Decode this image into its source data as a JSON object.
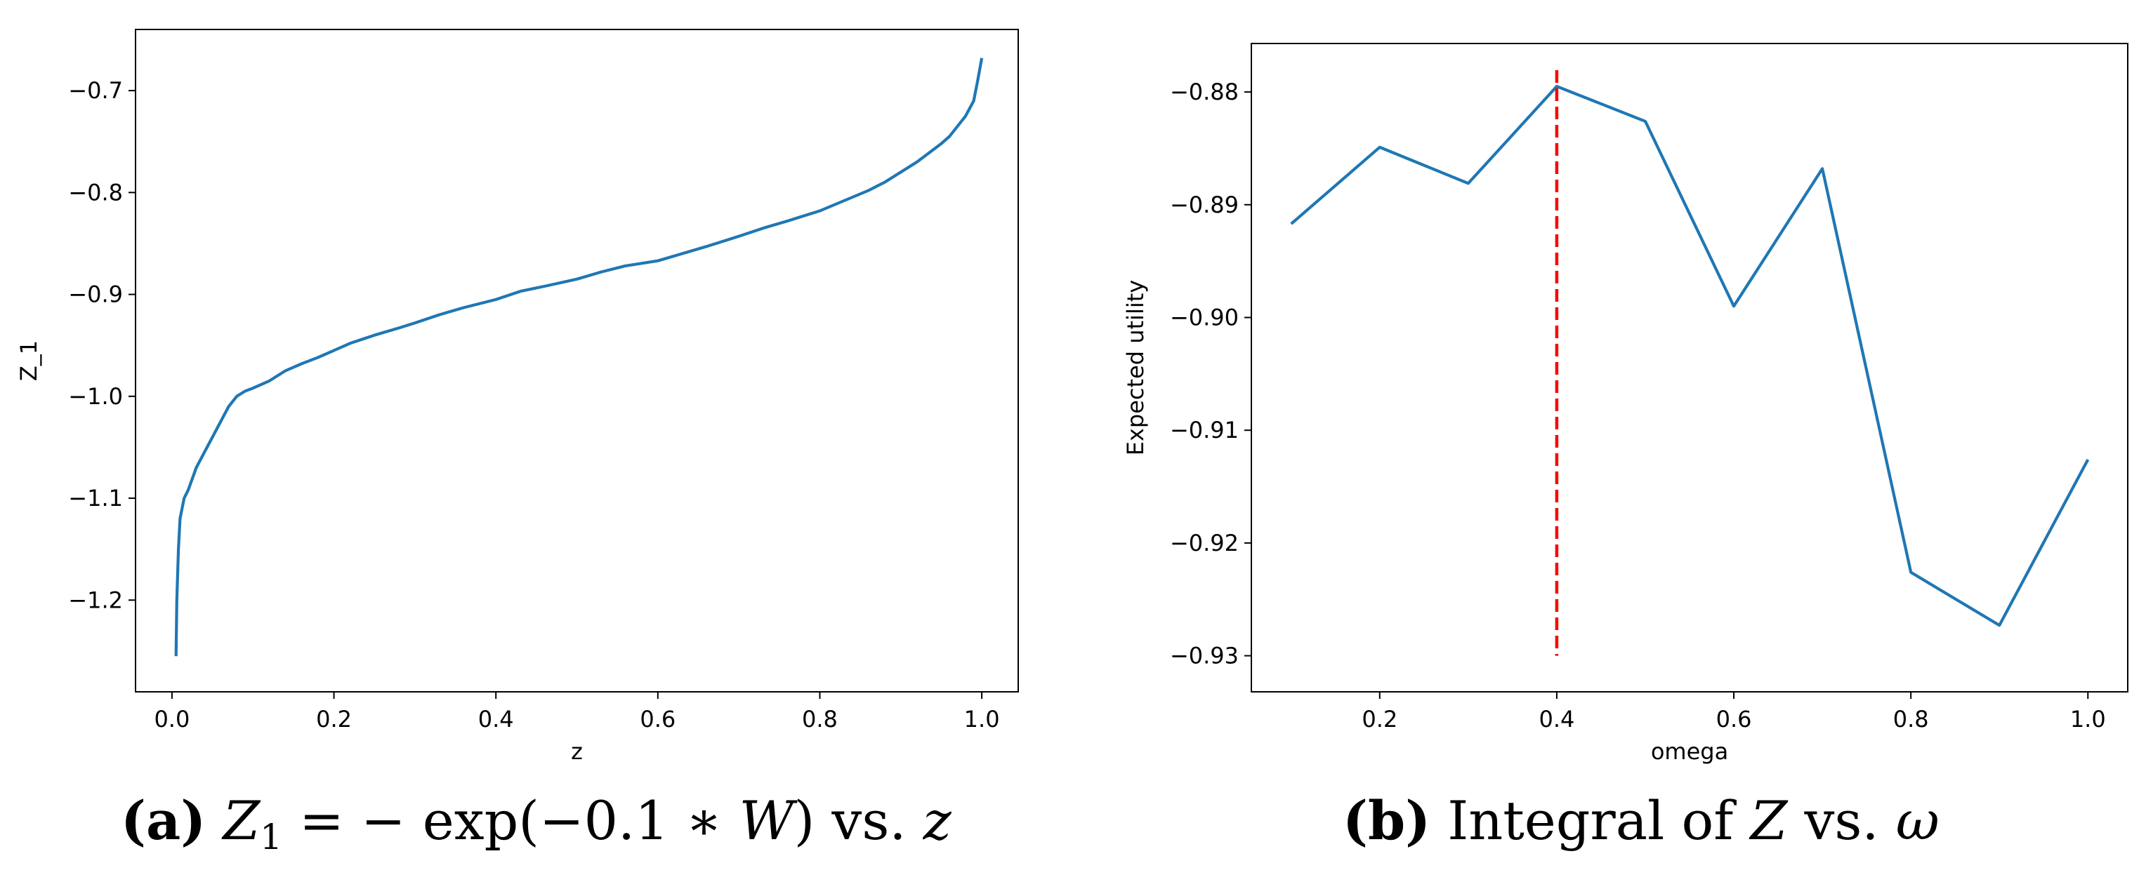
{
  "chart_data": [
    {
      "type": "line",
      "title": "",
      "xlabel": "z",
      "ylabel": "Z_1",
      "xlim": [
        -0.045,
        1.045
      ],
      "ylim": [
        -1.29,
        -0.64
      ],
      "xticks": [
        0.0,
        0.2,
        0.4,
        0.6,
        0.8,
        1.0
      ],
      "xtick_labels": [
        "0.0",
        "0.2",
        "0.4",
        "0.6",
        "0.8",
        "1.0"
      ],
      "yticks": [
        -1.2,
        -1.1,
        -1.0,
        -0.9,
        -0.8,
        -0.7
      ],
      "ytick_labels": [
        "−1.2",
        "−1.1",
        "−1.0",
        "−0.9",
        "−0.8",
        "−0.7"
      ],
      "color": "#1f77b4",
      "series": [
        {
          "name": "Z_1",
          "x": [
            0.005,
            0.006,
            0.008,
            0.01,
            0.015,
            0.02,
            0.03,
            0.04,
            0.05,
            0.06,
            0.07,
            0.08,
            0.09,
            0.1,
            0.12,
            0.14,
            0.16,
            0.18,
            0.2,
            0.22,
            0.25,
            0.28,
            0.3,
            0.33,
            0.36,
            0.4,
            0.43,
            0.46,
            0.5,
            0.53,
            0.56,
            0.6,
            0.63,
            0.66,
            0.7,
            0.73,
            0.76,
            0.8,
            0.83,
            0.86,
            0.88,
            0.9,
            0.92,
            0.94,
            0.95,
            0.96,
            0.97,
            0.98,
            0.99,
            0.995,
            1.0
          ],
          "y": [
            -1.255,
            -1.2,
            -1.15,
            -1.12,
            -1.1,
            -1.092,
            -1.07,
            -1.055,
            -1.04,
            -1.025,
            -1.01,
            -1.0,
            -0.995,
            -0.992,
            -0.985,
            -0.975,
            -0.968,
            -0.962,
            -0.955,
            -0.948,
            -0.94,
            -0.933,
            -0.928,
            -0.92,
            -0.913,
            -0.905,
            -0.897,
            -0.892,
            -0.885,
            -0.878,
            -0.872,
            -0.867,
            -0.86,
            -0.853,
            -0.843,
            -0.835,
            -0.828,
            -0.818,
            -0.808,
            -0.798,
            -0.79,
            -0.78,
            -0.77,
            -0.758,
            -0.752,
            -0.745,
            -0.735,
            -0.725,
            -0.71,
            -0.69,
            -0.668
          ]
        }
      ]
    },
    {
      "type": "line",
      "title": "",
      "xlabel": "omega",
      "ylabel": "Expected utility",
      "xlim": [
        0.055,
        1.045
      ],
      "ylim": [
        -0.9332,
        -0.8757
      ],
      "xticks": [
        0.2,
        0.4,
        0.6,
        0.8,
        1.0
      ],
      "xtick_labels": [
        "0.2",
        "0.4",
        "0.6",
        "0.8",
        "1.0"
      ],
      "yticks": [
        -0.93,
        -0.92,
        -0.91,
        -0.9,
        -0.89,
        -0.88
      ],
      "ytick_labels": [
        "−0.93",
        "−0.92",
        "−0.91",
        "−0.90",
        "−0.89",
        "−0.88"
      ],
      "color": "#1f77b4",
      "series": [
        {
          "name": "Expected utility",
          "x": [
            0.1,
            0.2,
            0.3,
            0.4,
            0.5,
            0.6,
            0.7,
            0.8,
            0.9,
            1.0
          ],
          "y": [
            -0.8917,
            -0.8849,
            -0.8881,
            -0.8795,
            -0.8826,
            -0.899,
            -0.8868,
            -0.9226,
            -0.9273,
            -0.9126
          ]
        }
      ],
      "vline": {
        "x": 0.4,
        "ymin": -0.93,
        "ymax": -0.875,
        "color": "#ff0000",
        "style": "dashed"
      }
    }
  ],
  "captions": {
    "a": {
      "label": "(a)",
      "lhs": "Z",
      "sub": "1",
      "eq": " = − exp(−0.1 ∗ ",
      "var": "W",
      "close": ") vs. ",
      "z": "z"
    },
    "b": {
      "label": "(b)",
      "text": " Integral of ",
      "Z": "Z",
      "vs": " vs. ",
      "omega": "ω"
    }
  }
}
